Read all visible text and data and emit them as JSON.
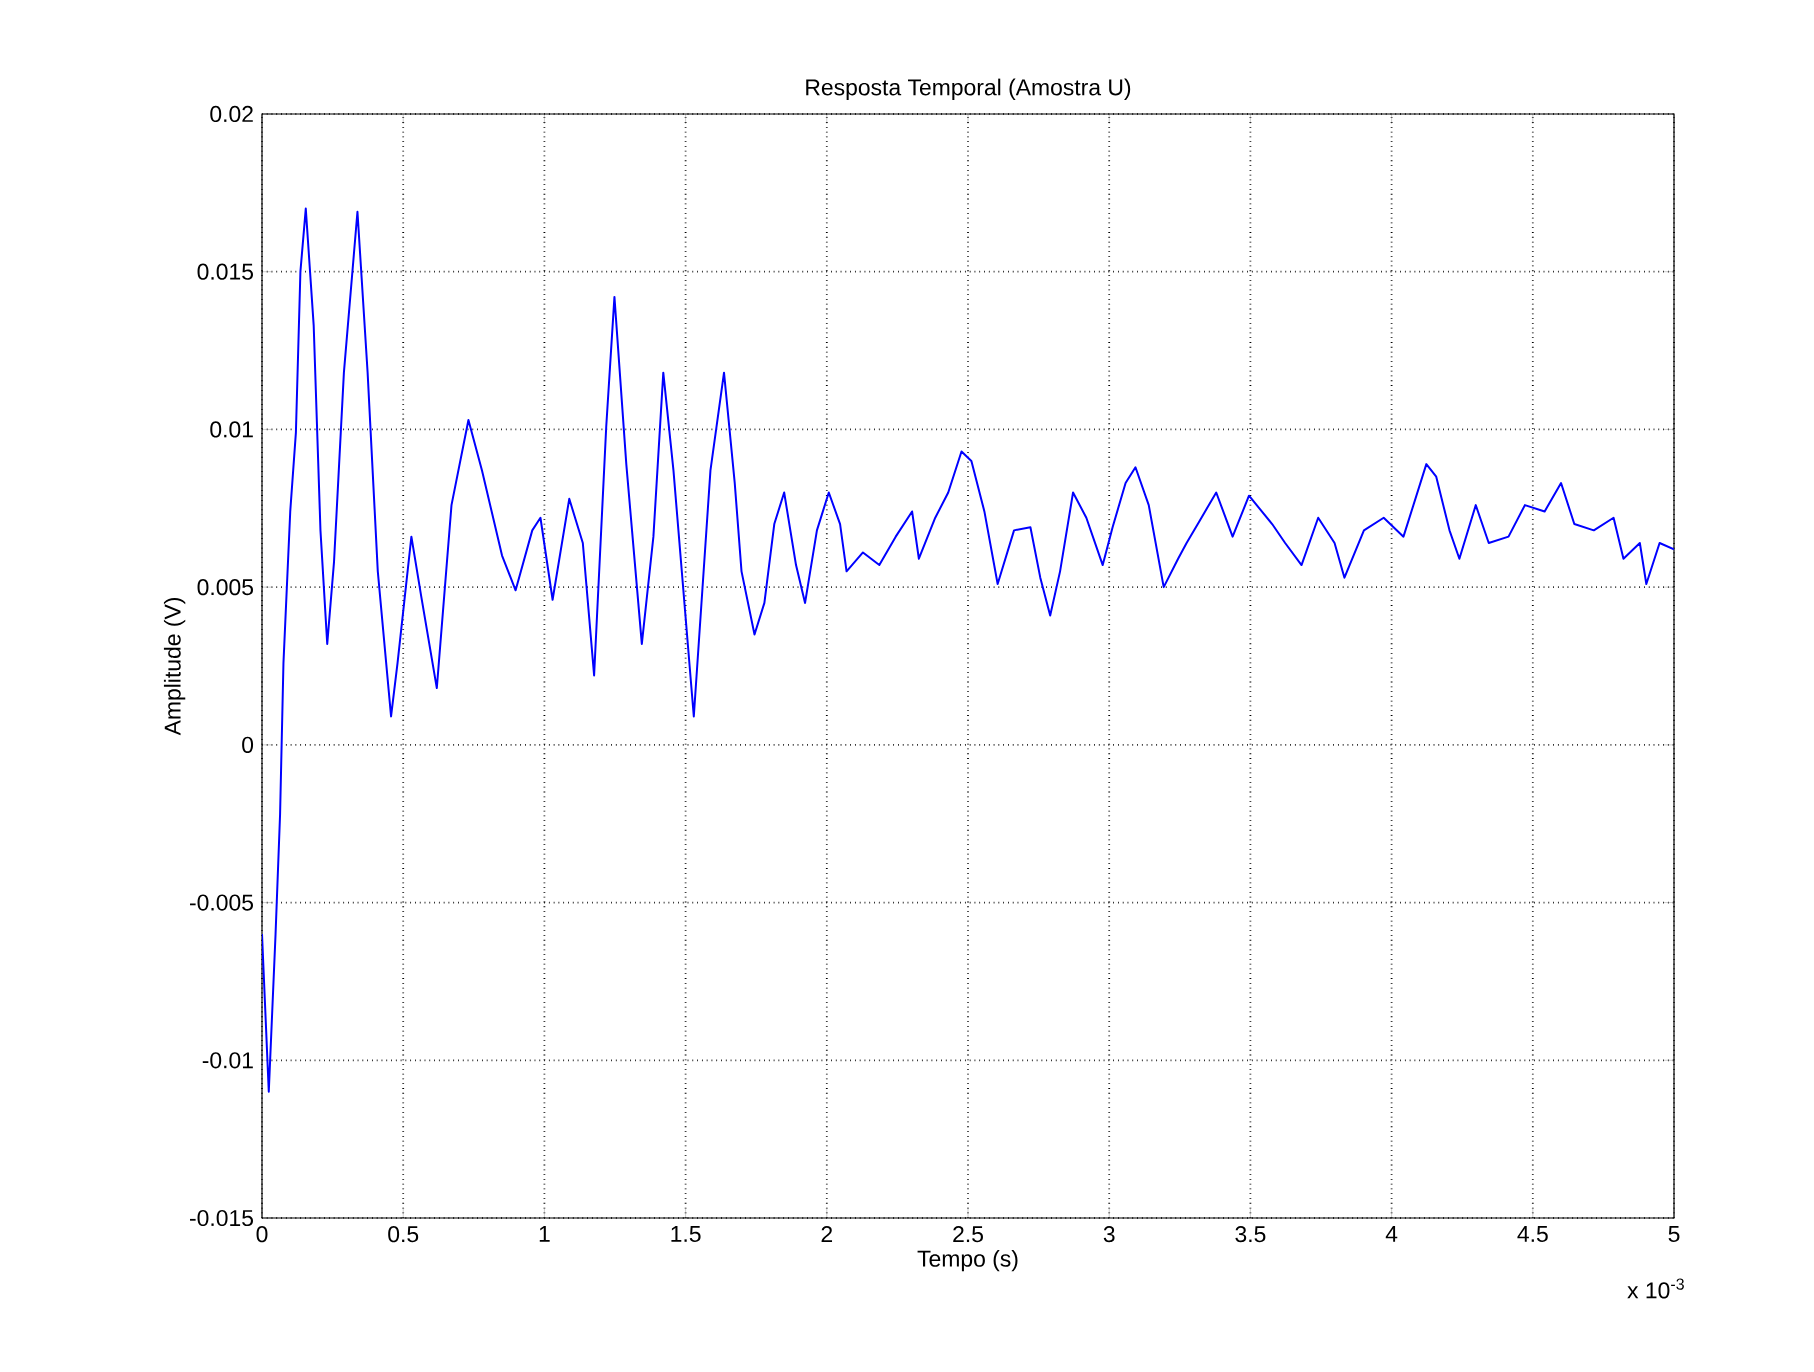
{
  "chart_data": {
    "type": "line",
    "title": "Resposta Temporal (Amostra U)",
    "xlabel": "Tempo (s)",
    "ylabel": "Amplitude (V)",
    "annotations": [
      "x 10$^{-3}$"
    ],
    "x": [
      0,
      0.024,
      0.048,
      0.064,
      0.076,
      0.1,
      0.12,
      0.136,
      0.155,
      0.183,
      0.207,
      0.231,
      0.255,
      0.29,
      0.338,
      0.374,
      0.41,
      0.457,
      0.48,
      0.529,
      0.564,
      0.619,
      0.671,
      0.731,
      0.779,
      0.85,
      0.898,
      0.957,
      0.986,
      1.029,
      1.088,
      1.136,
      1.176,
      1.219,
      1.248,
      1.29,
      1.345,
      1.386,
      1.421,
      1.457,
      1.529,
      1.588,
      1.636,
      1.674,
      1.698,
      1.744,
      1.779,
      1.814,
      1.849,
      1.891,
      1.923,
      1.965,
      2.007,
      2.047,
      2.07,
      2.128,
      2.186,
      2.244,
      2.302,
      2.326,
      2.384,
      2.43,
      2.477,
      2.512,
      2.558,
      2.605,
      2.663,
      2.721,
      2.756,
      2.791,
      2.826,
      2.872,
      2.919,
      2.977,
      3.012,
      3.058,
      3.093,
      3.14,
      3.193,
      3.244,
      3.274,
      3.32,
      3.379,
      3.437,
      3.495,
      3.577,
      3.623,
      3.681,
      3.74,
      3.798,
      3.833,
      3.902,
      3.972,
      4.042,
      4.123,
      4.158,
      4.205,
      4.24,
      4.298,
      4.344,
      4.414,
      4.472,
      4.542,
      4.6,
      4.647,
      4.716,
      4.786,
      4.821,
      4.879,
      4.902,
      4.949,
      5
    ],
    "series": [
      {
        "color": "#0000ff",
        "values": [
          -0.006,
          -0.011,
          -0.006,
          -0.0022,
          0.0026,
          0.0074,
          0.0099,
          0.015,
          0.017,
          0.0133,
          0.0068,
          0.0032,
          0.0058,
          0.0118,
          0.0169,
          0.0118,
          0.0055,
          0.0009,
          0.0026,
          0.0066,
          0.0047,
          0.0018,
          0.0076,
          0.0103,
          0.0087,
          0.006,
          0.0049,
          0.0068,
          0.0072,
          0.0046,
          0.0078,
          0.0064,
          0.0022,
          0.0101,
          0.0142,
          0.0089,
          0.0032,
          0.0066,
          0.0118,
          0.0087,
          0.0009,
          0.0087,
          0.0118,
          0.0083,
          0.0055,
          0.0035,
          0.0045,
          0.007,
          0.008,
          0.0057,
          0.0045,
          0.0068,
          0.008,
          0.007,
          0.0055,
          0.0061,
          0.0057,
          0.0066,
          0.0074,
          0.0059,
          0.0072,
          0.008,
          0.0093,
          0.009,
          0.0074,
          0.0051,
          0.0068,
          0.0069,
          0.0053,
          0.0041,
          0.0055,
          0.008,
          0.0072,
          0.0057,
          0.0069,
          0.0083,
          0.0088,
          0.0076,
          0.005,
          0.0059,
          0.0064,
          0.0071,
          0.008,
          0.0066,
          0.0079,
          0.007,
          0.0064,
          0.0057,
          0.0072,
          0.0064,
          0.0053,
          0.0068,
          0.0072,
          0.0066,
          0.0089,
          0.0085,
          0.0068,
          0.0059,
          0.0076,
          0.0064,
          0.0066,
          0.0076,
          0.0074,
          0.0083,
          0.007,
          0.0068,
          0.0072,
          0.0059,
          0.0064,
          0.0051,
          0.0064,
          0.0062
        ]
      }
    ],
    "xlim": [
      0,
      5
    ],
    "ylim": [
      -0.015,
      0.02
    ],
    "xticks": [
      0,
      0.5,
      1,
      1.5,
      2,
      2.5,
      3,
      3.5,
      4,
      4.5,
      5
    ],
    "yticks": [
      -0.015,
      -0.01,
      -0.005,
      0,
      0.005,
      0.01,
      0.015,
      0.02
    ],
    "grid": true
  }
}
